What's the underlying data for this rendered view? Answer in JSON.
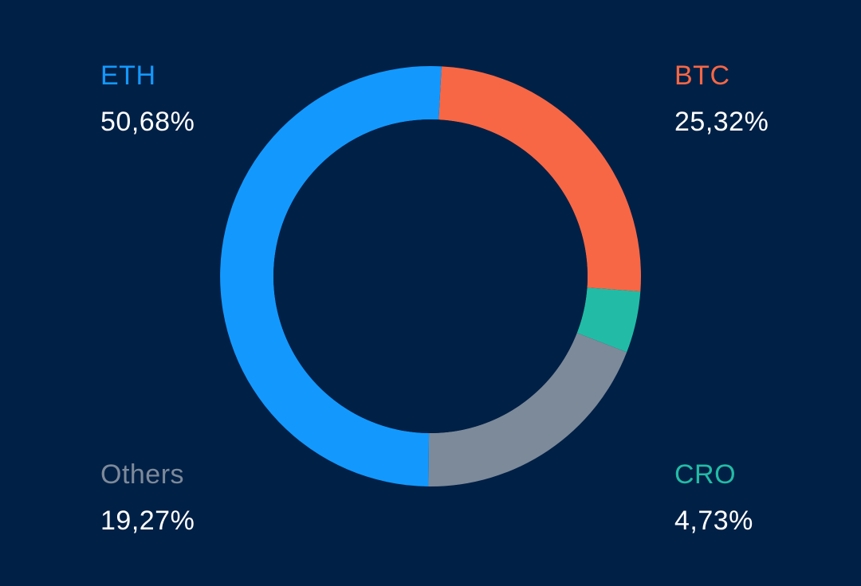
{
  "chart_data": {
    "type": "pie",
    "style": "donut",
    "start_angle_deg": 3,
    "slice_order": [
      "BTC",
      "CRO",
      "Others",
      "ETH"
    ],
    "slices": [
      {
        "label": "ETH",
        "value": 50.68,
        "display": "50,68%",
        "color": "#1399FE"
      },
      {
        "label": "BTC",
        "value": 25.32,
        "display": "25,32%",
        "color": "#F76745"
      },
      {
        "label": "CRO",
        "value": 4.73,
        "display": "4,73%",
        "color": "#22BCA6"
      },
      {
        "label": "Others",
        "value": 19.27,
        "display": "19,27%",
        "color": "#7D8A9A"
      }
    ],
    "background": "#012046"
  },
  "legend": {
    "eth": {
      "name": "ETH",
      "pct": "50,68%",
      "color": "#1399FE"
    },
    "btc": {
      "name": "BTC",
      "pct": "25,32%",
      "color": "#F76745"
    },
    "others": {
      "name": "Others",
      "pct": "19,27%",
      "color": "#7D8A9A"
    },
    "cro": {
      "name": "CRO",
      "pct": "4,73%",
      "color": "#22BCA6"
    }
  }
}
